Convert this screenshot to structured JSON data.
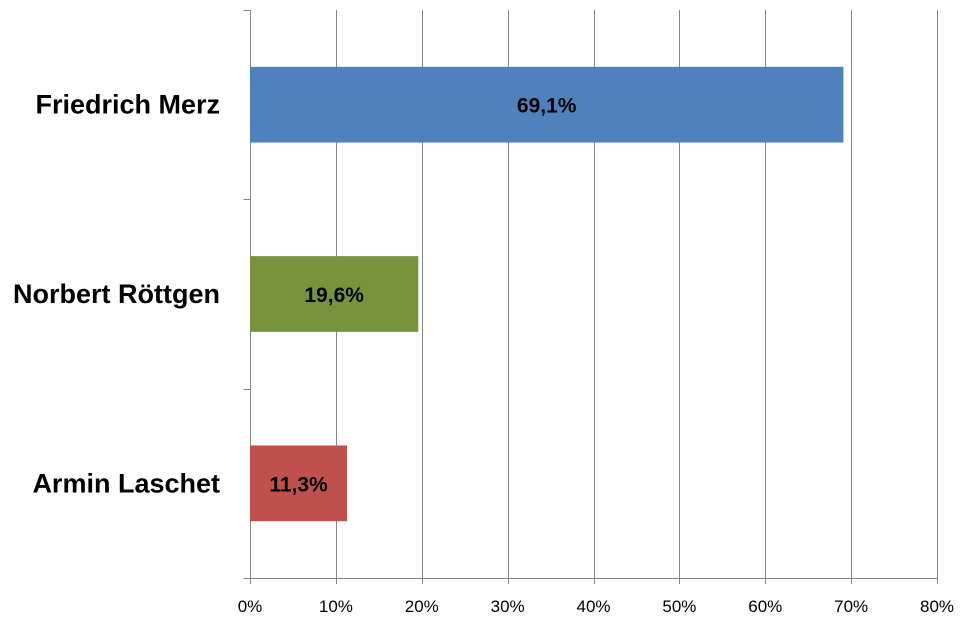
{
  "chart_data": {
    "type": "bar",
    "orientation": "horizontal",
    "categories": [
      "Friedrich Merz",
      "Norbert Röttgen",
      "Armin Laschet"
    ],
    "values": [
      69.1,
      19.6,
      11.3
    ],
    "data_labels": [
      "69,1%",
      "19,6%",
      "11,3%"
    ],
    "colors": [
      "#4F81BD",
      "#77933C",
      "#C0504D"
    ],
    "xlim": [
      0,
      80
    ],
    "x_ticks": [
      0,
      10,
      20,
      30,
      40,
      50,
      60,
      70,
      80
    ],
    "x_tick_labels": [
      "0%",
      "10%",
      "20%",
      "30%",
      "40%",
      "50%",
      "60%",
      "70%",
      "80%"
    ],
    "grid": true,
    "legend": "none",
    "title": "",
    "xlabel": "",
    "ylabel": ""
  }
}
